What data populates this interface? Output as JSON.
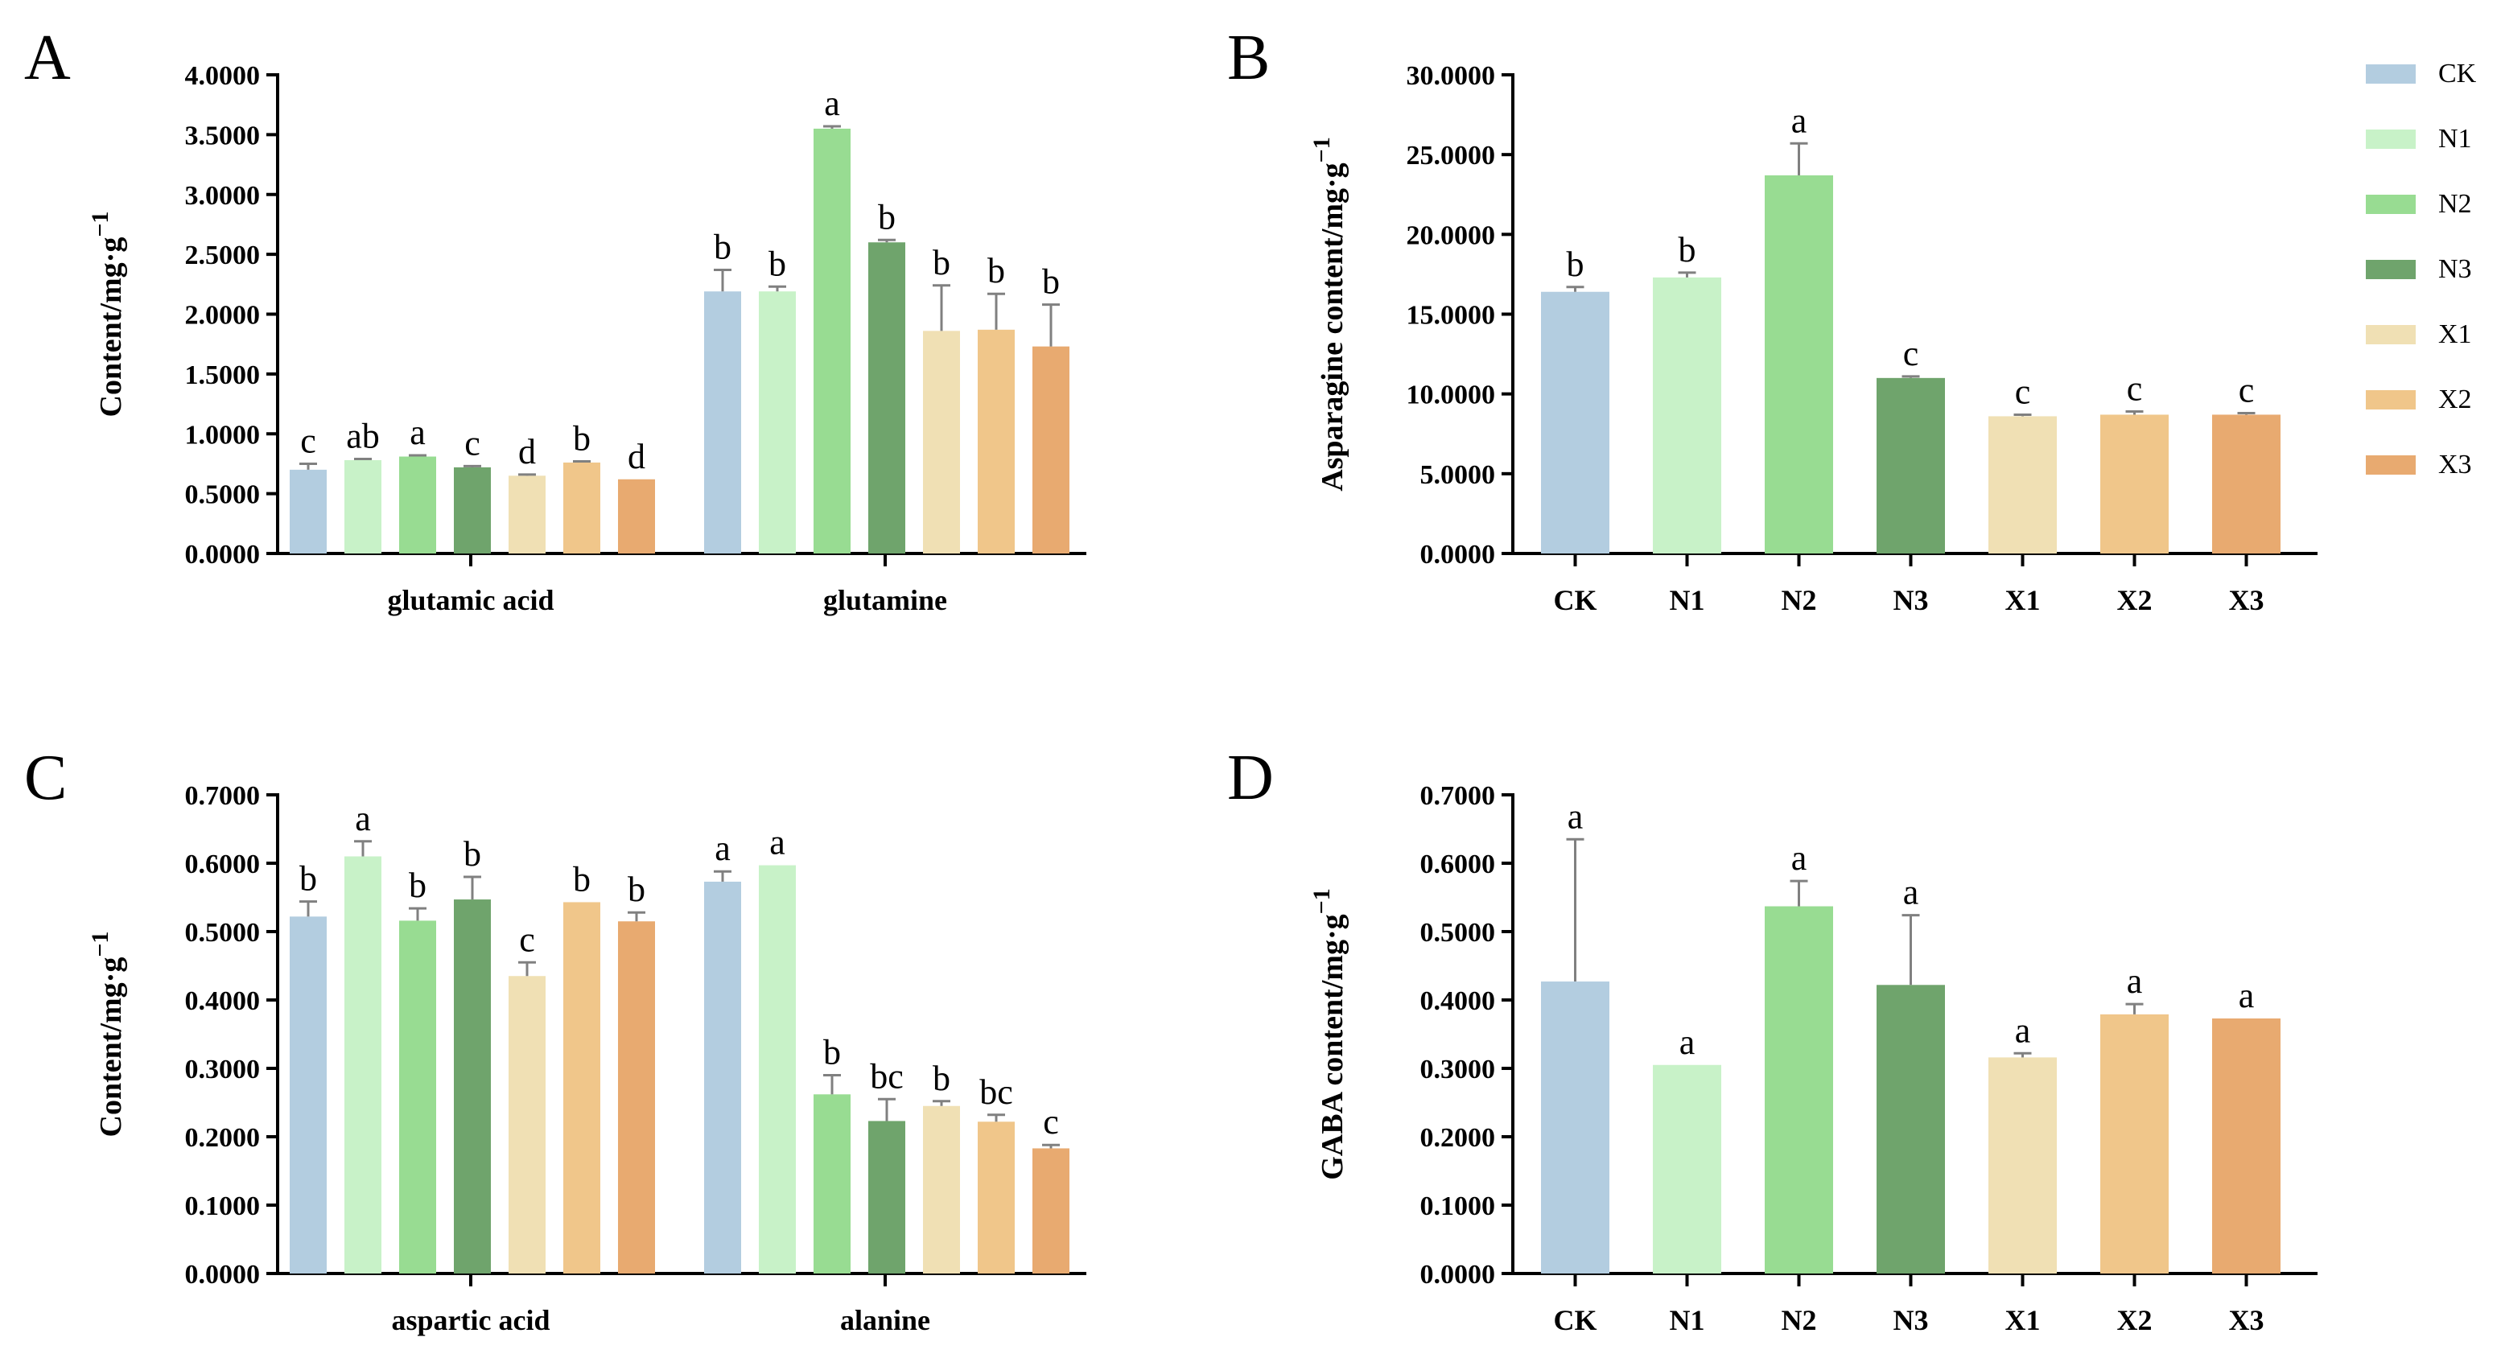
{
  "legend": {
    "items": [
      {
        "label": "CK",
        "color": "#b3cde0"
      },
      {
        "label": "N1",
        "color": "#c8f2c8"
      },
      {
        "label": "N2",
        "color": "#98dc92"
      },
      {
        "label": "N3",
        "color": "#6fa46c"
      },
      {
        "label": "X1",
        "color": "#f0e0b4"
      },
      {
        "label": "X2",
        "color": "#f0c68a"
      },
      {
        "label": "X3",
        "color": "#e8aa70"
      }
    ]
  },
  "chart_data": [
    {
      "panel": "A",
      "type": "bar",
      "title": "",
      "ylabel": "Content/mg·g",
      "ylabel_sup": "−1",
      "ylim": [
        0,
        4.0
      ],
      "yticks": [
        "0.0000",
        "0.5000",
        "1.0000",
        "1.5000",
        "2.0000",
        "2.5000",
        "3.0000",
        "3.5000",
        "4.0000"
      ],
      "grouped": true,
      "categories": [
        "glutamic acid",
        "glutamine"
      ],
      "series": [
        {
          "name": "CK",
          "values": [
            0.7,
            2.19
          ],
          "errors": [
            0.05,
            0.18
          ],
          "letters": [
            "c",
            "b"
          ]
        },
        {
          "name": "N1",
          "values": [
            0.78,
            2.19
          ],
          "errors": [
            0.01,
            0.04
          ],
          "letters": [
            "ab",
            "b"
          ]
        },
        {
          "name": "N2",
          "values": [
            0.81,
            3.55
          ],
          "errors": [
            0.01,
            0.02
          ],
          "letters": [
            "a",
            "a"
          ]
        },
        {
          "name": "N3",
          "values": [
            0.72,
            2.6
          ],
          "errors": [
            0.01,
            0.02
          ],
          "letters": [
            "c",
            "b"
          ]
        },
        {
          "name": "X1",
          "values": [
            0.65,
            1.86
          ],
          "errors": [
            0.01,
            0.38
          ],
          "letters": [
            "d",
            "b"
          ]
        },
        {
          "name": "X2",
          "values": [
            0.76,
            1.87
          ],
          "errors": [
            0.01,
            0.3
          ],
          "letters": [
            "b",
            "b"
          ]
        },
        {
          "name": "X3",
          "values": [
            0.62,
            1.73
          ],
          "errors": [
            0.0,
            0.35
          ],
          "letters": [
            "d",
            "b"
          ]
        }
      ]
    },
    {
      "panel": "B",
      "type": "bar",
      "title": "",
      "ylabel": "Asparagine content/mg·g",
      "ylabel_sup": "−1",
      "ylim": [
        0,
        30.0
      ],
      "yticks": [
        "0.0000",
        "5.0000",
        "10.0000",
        "15.0000",
        "20.0000",
        "25.0000",
        "30.0000"
      ],
      "grouped": false,
      "categories": [
        "CK",
        "N1",
        "N2",
        "N3",
        "X1",
        "X2",
        "X3"
      ],
      "values": [
        16.4,
        17.3,
        23.7,
        11.0,
        8.6,
        8.7,
        8.7
      ],
      "errors": [
        0.3,
        0.3,
        2.0,
        0.1,
        0.1,
        0.2,
        0.1
      ],
      "letters": [
        "b",
        "b",
        "a",
        "c",
        "c",
        "c",
        "c"
      ]
    },
    {
      "panel": "C",
      "type": "bar",
      "title": "",
      "ylabel": "Content/mg·g",
      "ylabel_sup": "−1",
      "ylim": [
        0,
        0.7
      ],
      "yticks": [
        "0.0000",
        "0.1000",
        "0.2000",
        "0.3000",
        "0.4000",
        "0.5000",
        "0.6000",
        "0.7000"
      ],
      "grouped": true,
      "categories": [
        "aspartic acid",
        "alanine"
      ],
      "series": [
        {
          "name": "CK",
          "values": [
            0.522,
            0.573
          ],
          "errors": [
            0.022,
            0.015
          ],
          "letters": [
            "b",
            "a"
          ]
        },
        {
          "name": "N1",
          "values": [
            0.61,
            0.597
          ],
          "errors": [
            0.022,
            0.0
          ],
          "letters": [
            "a",
            "a"
          ]
        },
        {
          "name": "N2",
          "values": [
            0.516,
            0.262
          ],
          "errors": [
            0.018,
            0.028
          ],
          "letters": [
            "b",
            "b"
          ]
        },
        {
          "name": "N3",
          "values": [
            0.547,
            0.223
          ],
          "errors": [
            0.033,
            0.032
          ],
          "letters": [
            "b",
            "bc"
          ]
        },
        {
          "name": "X1",
          "values": [
            0.435,
            0.245
          ],
          "errors": [
            0.02,
            0.007
          ],
          "letters": [
            "c",
            "b"
          ]
        },
        {
          "name": "X2",
          "values": [
            0.543,
            0.222
          ],
          "errors": [
            0.0,
            0.01
          ],
          "letters": [
            "b",
            "bc"
          ]
        },
        {
          "name": "X3",
          "values": [
            0.515,
            0.183
          ],
          "errors": [
            0.013,
            0.005
          ],
          "letters": [
            "b",
            "c"
          ]
        }
      ]
    },
    {
      "panel": "D",
      "type": "bar",
      "title": "",
      "ylabel": "GABA content/mg·g",
      "ylabel_sup": "−1",
      "ylim": [
        0,
        0.7
      ],
      "yticks": [
        "0.0000",
        "0.1000",
        "0.2000",
        "0.3000",
        "0.4000",
        "0.5000",
        "0.6000",
        "0.7000"
      ],
      "grouped": false,
      "categories": [
        "CK",
        "N1",
        "N2",
        "N3",
        "X1",
        "X2",
        "X3"
      ],
      "values": [
        0.427,
        0.305,
        0.537,
        0.422,
        0.316,
        0.379,
        0.373
      ],
      "errors": [
        0.208,
        0.0,
        0.037,
        0.102,
        0.006,
        0.015,
        0.0
      ],
      "letters": [
        "a",
        "a",
        "a",
        "a",
        "a",
        "a",
        "a"
      ]
    }
  ]
}
